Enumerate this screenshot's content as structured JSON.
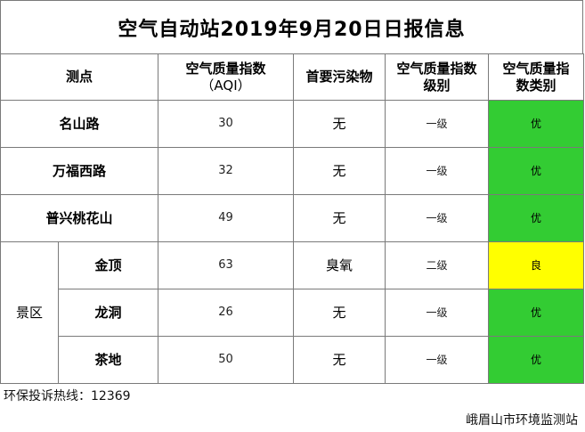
{
  "title": "空气自动站2019年9月20日日报信息",
  "headers": {
    "site": "测点",
    "aqi_line1": "空气质量指数",
    "aqi_line2": "（AQI）",
    "pollutant": "首要污染物",
    "level_line1": "空气质量指数",
    "level_line2": "级别",
    "category_line1": "空气质量指",
    "category_line2": "数类别"
  },
  "rows": [
    {
      "site": "名山路",
      "aqi": "30",
      "pollutant": "无",
      "level": "一级",
      "category": "优",
      "category_color": "#33cc33"
    },
    {
      "site": "万福西路",
      "aqi": "32",
      "pollutant": "无",
      "level": "一级",
      "category": "优",
      "category_color": "#33cc33"
    },
    {
      "site": "普兴桃花山",
      "aqi": "49",
      "pollutant": "无",
      "level": "一级",
      "category": "优",
      "category_color": "#33cc33"
    }
  ],
  "scenic": {
    "area_label": "景区",
    "rows": [
      {
        "site": "金顶",
        "aqi": "63",
        "pollutant": "臭氧",
        "level": "二级",
        "category": "良",
        "category_color": "#ffff00"
      },
      {
        "site": "龙洞",
        "aqi": "26",
        "pollutant": "无",
        "level": "一级",
        "category": "优",
        "category_color": "#33cc33"
      },
      {
        "site": "茶地",
        "aqi": "50",
        "pollutant": "无",
        "level": "一级",
        "category": "优",
        "category_color": "#33cc33"
      }
    ]
  },
  "footer": {
    "hotline": "环保投诉热线：12369",
    "agency": "峨眉山市环境监测站"
  }
}
